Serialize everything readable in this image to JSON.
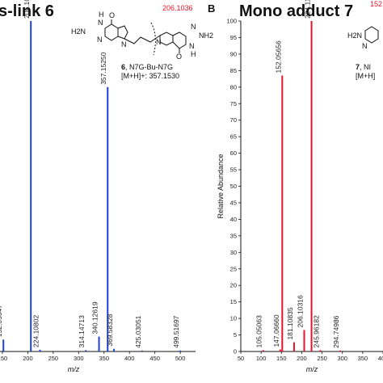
{
  "chart_data": [
    {
      "type": "bar",
      "panel": "A",
      "title": "s-link 6",
      "title_bold_suffix": "",
      "color": "#1f3fd6",
      "xlabel": "m/z",
      "ylabel": "",
      "xlim": [
        50,
        530
      ],
      "ylim": [
        0,
        100
      ],
      "x_ticks": [
        "150",
        "200",
        "250",
        "300",
        "350",
        "400",
        "450",
        "500"
      ],
      "peaks": [
        {
          "mz": 152.05647,
          "label": "152.05647",
          "value": 3.6
        },
        {
          "mz": 206.10332,
          "label": "206.10332",
          "value": 100
        },
        {
          "mz": 224.10802,
          "label": "224.10802",
          "value": 0.5
        },
        {
          "mz": 314.14713,
          "label": "314.14713",
          "value": 0.4
        },
        {
          "mz": 340.12619,
          "label": "340.12619",
          "value": 4.5
        },
        {
          "mz": 357.1525,
          "label": "357.15250",
          "value": 80
        },
        {
          "mz": 369.58328,
          "label": "369.58328",
          "value": 0.8
        },
        {
          "mz": 425.03051,
          "label": "425.03051",
          "value": 0.3
        },
        {
          "mz": 499.51697,
          "label": "499.51697",
          "value": 0.3
        }
      ],
      "structure": {
        "fragment_mass": "206.1036",
        "name_number": "6",
        "name": ", N7G-Bu-N7G",
        "ion": "[M+H]+: 357.1530",
        "atoms": [
          "H",
          "N",
          "H2N",
          "N",
          "O",
          "N",
          "N",
          "O",
          "N",
          "NH2",
          "N",
          "H"
        ]
      }
    },
    {
      "type": "bar",
      "panel": "B",
      "title": "Mono adduct 7",
      "color": "#e8122a",
      "xlabel": "m/z",
      "ylabel": "Relative Abundance",
      "xlim": [
        50,
        400
      ],
      "ylim": [
        0,
        100
      ],
      "x_ticks": [
        "50",
        "100",
        "150",
        "200",
        "250",
        "300",
        "350",
        "400"
      ],
      "y_ticks": [
        "0",
        "5",
        "10",
        "15",
        "20",
        "25",
        "30",
        "35",
        "40",
        "45",
        "50",
        "55",
        "60",
        "65",
        "70",
        "75",
        "80",
        "85",
        "90",
        "95",
        "100"
      ],
      "peaks": [
        {
          "mz": 105.05063,
          "label": "105.05063",
          "value": 0.4
        },
        {
          "mz": 147.0666,
          "label": "147.06660",
          "value": 0.6
        },
        {
          "mz": 152.05656,
          "label": "152.05656",
          "value": 83.5
        },
        {
          "mz": 181.10835,
          "label": "181.10835",
          "value": 2.8
        },
        {
          "mz": 206.10316,
          "label": "206.10316",
          "value": 6.5
        },
        {
          "mz": 224.11398,
          "label": "224.11398",
          "value": 100
        },
        {
          "mz": 245.96182,
          "label": "245.96182",
          "value": 0.4
        },
        {
          "mz": 294.74986,
          "label": "294.74986",
          "value": 0.3
        }
      ],
      "structure": {
        "fragment_mass": "152",
        "name_number": "7",
        "name": ", NI",
        "ion": "[M+H]",
        "atoms": [
          "H2N",
          "N"
        ]
      }
    }
  ],
  "panel_letters": {
    "b": "B"
  }
}
